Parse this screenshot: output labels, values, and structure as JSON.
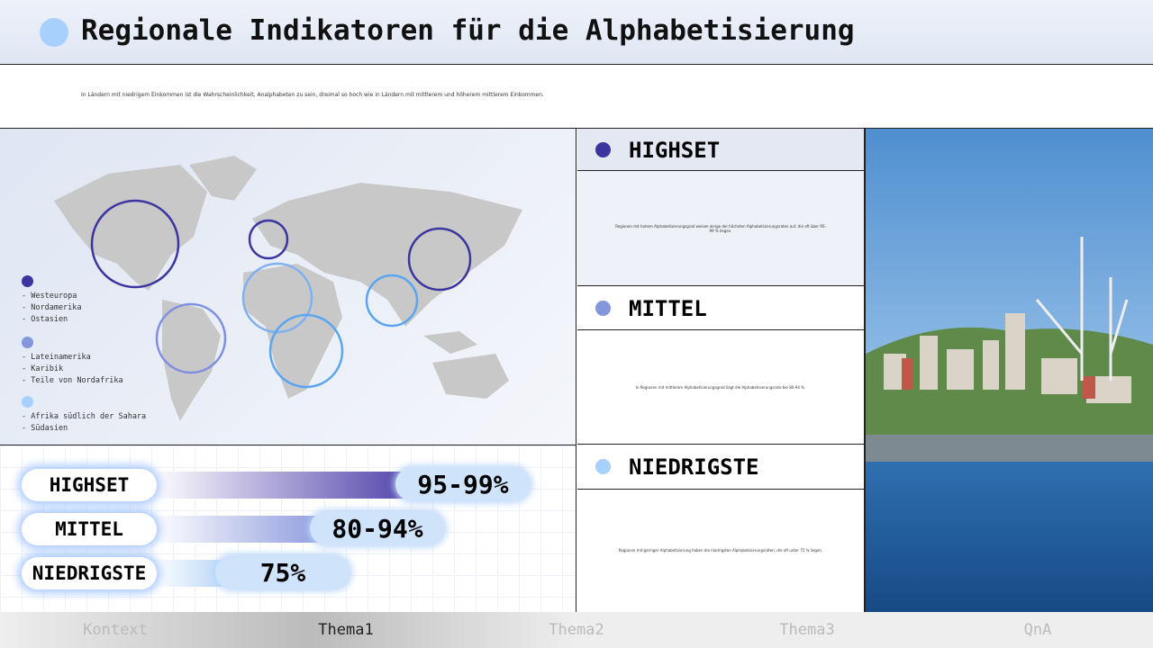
{
  "header": {
    "title": "Regionale Indikatoren für die Alphabetisierung",
    "subtitle": "In Ländern mit niedrigem Einkommen ist die Wahrscheinlichkeit, Analphabeten zu sein, dreimal so hoch wie in Ländern mit mittlerem und höherem mittlerem Einkommen."
  },
  "legend": [
    {
      "items": [
        "- Westeuropa",
        "- Nordamerika",
        "- Ostasien"
      ]
    },
    {
      "items": [
        "- Lateinamerika",
        "- Karibik",
        "- Teile von Nordafrika"
      ]
    },
    {
      "items": [
        "- Afrika südlich der Sahara",
        "- Südasien"
      ]
    }
  ],
  "bars": [
    {
      "label": "HIGHSET",
      "value": "95-99%"
    },
    {
      "label": "MITTEL",
      "value": "80-94%"
    },
    {
      "label": "NIEDRIGSTE",
      "value": "75%"
    }
  ],
  "panels": [
    {
      "title": "HIGHSET",
      "text": "Regionen mit hohem Alphabetisierungsgrad weisen einige der höchsten Alphabetisierungsraten auf, die oft über 95-99 % liegen."
    },
    {
      "title": "MITTEL",
      "text": "In Regionen mit mittlerem Alphabetisierungsgrad liegt die Alphabetisierungsrate bei 80-94 %."
    },
    {
      "title": "NIEDRIGSTE",
      "text": "Regionen mit geringer Alphabetisierung haben die niedrigsten Alphabetisierungsraten, die oft unter 75 % liegen."
    }
  ],
  "nav": [
    "Kontext",
    "Thema1",
    "Thema2",
    "Thema3",
    "QnA"
  ]
}
